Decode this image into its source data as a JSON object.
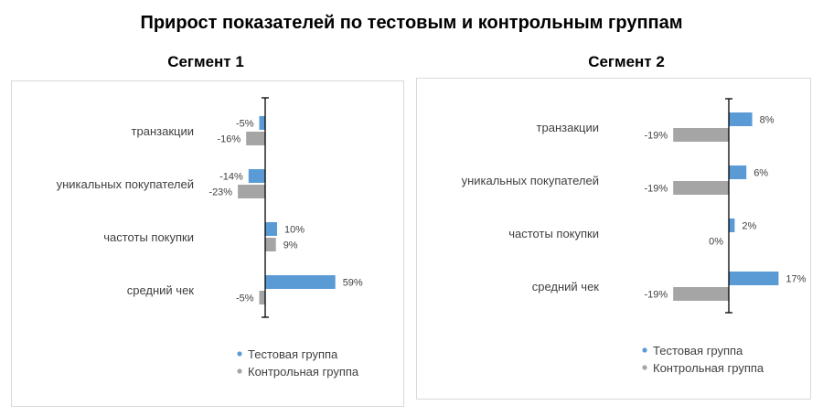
{
  "title": "Прирост показателей по тестовым и контрольным группам",
  "chart_data": [
    {
      "type": "bar",
      "orientation": "horizontal",
      "title": "Сегмент 1",
      "categories": [
        "транзакции",
        "уникальных покупателей",
        "частоты покупки",
        "средний чек"
      ],
      "series": [
        {
          "name": "Тестовая группа",
          "values": [
            -5,
            -14,
            10,
            59
          ],
          "labels": [
            "-5%",
            "-14%",
            "10%",
            "59%"
          ],
          "color": "#5b9bd5"
        },
        {
          "name": "Контрольная группа",
          "values": [
            -16,
            -23,
            9,
            -5
          ],
          "labels": [
            "-16%",
            "-23%",
            "9%",
            "-5%"
          ],
          "color": "#a5a5a5"
        }
      ],
      "legend_position": "bottom",
      "grid": false
    },
    {
      "type": "bar",
      "orientation": "horizontal",
      "title": "Сегмент 2",
      "categories": [
        "транзакции",
        "уникальных покупателей",
        "частоты покупки",
        "средний чек"
      ],
      "series": [
        {
          "name": "Тестовая группа",
          "values": [
            8,
            6,
            2,
            17
          ],
          "labels": [
            "8%",
            "6%",
            "2%",
            "17%"
          ],
          "color": "#5b9bd5"
        },
        {
          "name": "Контрольная группа",
          "values": [
            -19,
            -19,
            0,
            -19
          ],
          "labels": [
            "-19%",
            "-19%",
            "0%",
            "-19%"
          ],
          "color": "#a5a5a5"
        }
      ],
      "legend_position": "bottom",
      "grid": false
    }
  ]
}
